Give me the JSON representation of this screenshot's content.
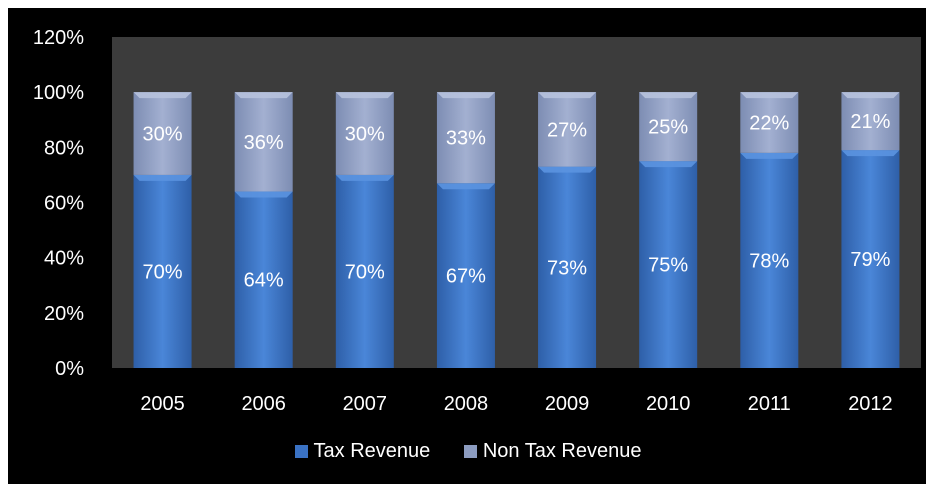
{
  "chart_data": {
    "type": "bar",
    "stacked": true,
    "categories": [
      "2005",
      "2006",
      "2007",
      "2008",
      "2009",
      "2010",
      "2011",
      "2012"
    ],
    "series": [
      {
        "name": "Tax Revenue",
        "values": [
          70,
          64,
          70,
          67,
          73,
          75,
          78,
          79
        ],
        "labels": [
          "70%",
          "64%",
          "70%",
          "67%",
          "73%",
          "75%",
          "78%",
          "79%"
        ],
        "color": "#3a72c4"
      },
      {
        "name": "Non Tax Revenue",
        "values": [
          30,
          36,
          30,
          33,
          27,
          25,
          22,
          21
        ],
        "labels": [
          "30%",
          "36%",
          "30%",
          "33%",
          "27%",
          "25%",
          "22%",
          "21%"
        ],
        "color": "#8c9cc0"
      }
    ],
    "y_ticks": [
      "0%",
      "20%",
      "40%",
      "60%",
      "80%",
      "100%",
      "120%"
    ],
    "ylim": [
      0,
      120
    ],
    "legend": {
      "position": "bottom"
    },
    "grid": false,
    "plot_background": "#3c3c3c",
    "background": "#000000"
  }
}
